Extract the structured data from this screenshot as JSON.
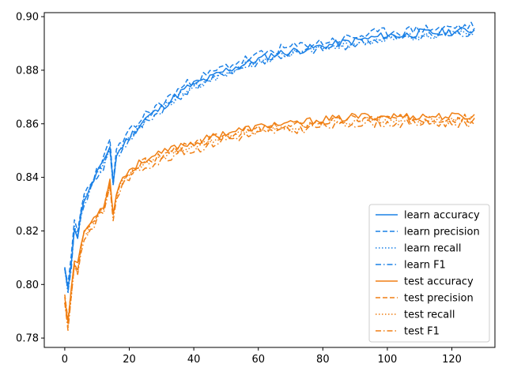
{
  "chart_data": {
    "type": "line",
    "title": "",
    "xlabel": "",
    "ylabel": "",
    "xlim": [
      -6.35,
      133.35
    ],
    "ylim": [
      0.7765,
      0.9015
    ],
    "x_ticks": [
      0,
      20,
      40,
      60,
      80,
      100,
      120
    ],
    "x_tick_labels": [
      "0",
      "20",
      "40",
      "60",
      "80",
      "100",
      "120"
    ],
    "y_ticks": [
      0.78,
      0.8,
      0.82,
      0.84,
      0.86,
      0.88,
      0.9
    ],
    "y_tick_labels": [
      "0.78",
      "0.80",
      "0.82",
      "0.84",
      "0.86",
      "0.88",
      "0.90"
    ],
    "grid": false,
    "legend_position": "bottom-right",
    "colors": {
      "learn": "#1a80e6",
      "test": "#f07f13"
    },
    "x_count": 128,
    "x_start": 0,
    "anchors": {
      "learn": [
        [
          0,
          0.806
        ],
        [
          1,
          0.797
        ],
        [
          2,
          0.808
        ],
        [
          3,
          0.822
        ],
        [
          4,
          0.818
        ],
        [
          5,
          0.826
        ],
        [
          6,
          0.832
        ],
        [
          8,
          0.836
        ],
        [
          10,
          0.842
        ],
        [
          12,
          0.845
        ],
        [
          14,
          0.852
        ],
        [
          15,
          0.838
        ],
        [
          16,
          0.848
        ],
        [
          18,
          0.852
        ],
        [
          20,
          0.855
        ],
        [
          25,
          0.862
        ],
        [
          30,
          0.866
        ],
        [
          35,
          0.871
        ],
        [
          40,
          0.875
        ],
        [
          45,
          0.877
        ],
        [
          50,
          0.88
        ],
        [
          55,
          0.882
        ],
        [
          60,
          0.884
        ],
        [
          65,
          0.886
        ],
        [
          70,
          0.887
        ],
        [
          75,
          0.888
        ],
        [
          80,
          0.889
        ],
        [
          85,
          0.89
        ],
        [
          90,
          0.891
        ],
        [
          95,
          0.892
        ],
        [
          100,
          0.893
        ],
        [
          105,
          0.893
        ],
        [
          110,
          0.894
        ],
        [
          115,
          0.894
        ],
        [
          120,
          0.8945
        ],
        [
          127,
          0.895
        ]
      ],
      "test": [
        [
          0,
          0.795
        ],
        [
          1,
          0.786
        ],
        [
          2,
          0.797
        ],
        [
          3,
          0.809
        ],
        [
          4,
          0.806
        ],
        [
          5,
          0.814
        ],
        [
          6,
          0.819
        ],
        [
          8,
          0.822
        ],
        [
          10,
          0.826
        ],
        [
          12,
          0.829
        ],
        [
          14,
          0.838
        ],
        [
          15,
          0.826
        ],
        [
          16,
          0.834
        ],
        [
          18,
          0.839
        ],
        [
          20,
          0.842
        ],
        [
          25,
          0.846
        ],
        [
          30,
          0.848
        ],
        [
          35,
          0.851
        ],
        [
          40,
          0.852
        ],
        [
          45,
          0.854
        ],
        [
          50,
          0.856
        ],
        [
          55,
          0.857
        ],
        [
          60,
          0.858
        ],
        [
          65,
          0.859
        ],
        [
          70,
          0.859
        ],
        [
          75,
          0.86
        ],
        [
          80,
          0.861
        ],
        [
          85,
          0.861
        ],
        [
          90,
          0.862
        ],
        [
          95,
          0.862
        ],
        [
          100,
          0.862
        ],
        [
          105,
          0.862
        ],
        [
          110,
          0.862
        ],
        [
          115,
          0.862
        ],
        [
          120,
          0.862
        ],
        [
          127,
          0.862
        ]
      ]
    },
    "series": [
      {
        "name": "learn accuracy",
        "group": "learn",
        "dash": "solid",
        "offset": 0.0,
        "noise_amp": 0.0015,
        "seed": 11
      },
      {
        "name": "learn precision",
        "group": "learn",
        "dash": "dashed",
        "offset": 0.0015,
        "noise_amp": 0.0018,
        "seed": 23
      },
      {
        "name": "learn recall",
        "group": "learn",
        "dash": "dotted",
        "offset": -0.0008,
        "noise_amp": 0.0015,
        "seed": 37
      },
      {
        "name": "learn F1",
        "group": "learn",
        "dash": "dashdot",
        "offset": -0.0012,
        "noise_amp": 0.0016,
        "seed": 41
      },
      {
        "name": "test accuracy",
        "group": "test",
        "dash": "solid",
        "offset": 0.0008,
        "noise_amp": 0.0014,
        "seed": 53
      },
      {
        "name": "test precision",
        "group": "test",
        "dash": "dashed",
        "offset": 0.0,
        "noise_amp": 0.0016,
        "seed": 67
      },
      {
        "name": "test recall",
        "group": "test",
        "dash": "dotted",
        "offset": -0.0006,
        "noise_amp": 0.0014,
        "seed": 71
      },
      {
        "name": "test F1",
        "group": "test",
        "dash": "dashdot",
        "offset": -0.0018,
        "noise_amp": 0.0016,
        "seed": 83
      }
    ]
  }
}
